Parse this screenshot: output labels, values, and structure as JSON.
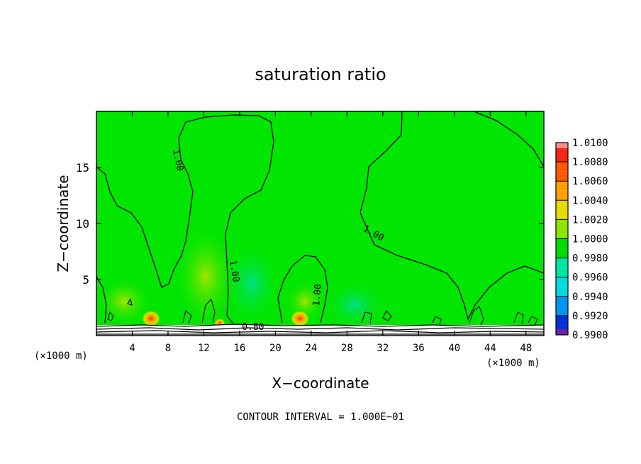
{
  "chart_data": {
    "type": "heatmap",
    "title": "saturation ratio",
    "xlabel": "X−coordinate",
    "ylabel": "Z−coordinate",
    "x_unit_left": "(×1000 m)",
    "x_unit_right": "(×1000 m)",
    "footer": "CONTOUR INTERVAL = 1.000E−01",
    "xlim": [
      0,
      50
    ],
    "ylim": [
      0,
      20
    ],
    "x_ticks": [
      4,
      8,
      12,
      16,
      20,
      24,
      28,
      32,
      36,
      40,
      44,
      48
    ],
    "y_ticks": [
      5,
      10,
      15
    ],
    "contour_labels": [
      {
        "text": "1.00",
        "x": 8.8,
        "y": 15.6
      },
      {
        "text": "1.00",
        "x": 15.1,
        "y": 5.7
      },
      {
        "text": "1.00",
        "x": 25.0,
        "y": 3.6
      },
      {
        "text": "1.00",
        "x": 30.8,
        "y": 8.9
      },
      {
        "text": "0.80",
        "x": 17.5,
        "y": 0.5
      }
    ],
    "colorbar": {
      "labels": [
        "1.0100",
        "1.0080",
        "1.0060",
        "1.0040",
        "1.0020",
        "1.0000",
        "0.9980",
        "0.9960",
        "0.9940",
        "0.9920",
        "0.9900"
      ],
      "colors": [
        "#ff8c8c",
        "#f02814",
        "#ff5a00",
        "#ffa000",
        "#e6dc00",
        "#8ce600",
        "#00dc00",
        "#00e6a0",
        "#00dcdc",
        "#0096f0",
        "#0032dc",
        "#0000a0",
        "#6e1eaa"
      ]
    },
    "background_color": "#00e600",
    "contour_color": "#000000"
  }
}
